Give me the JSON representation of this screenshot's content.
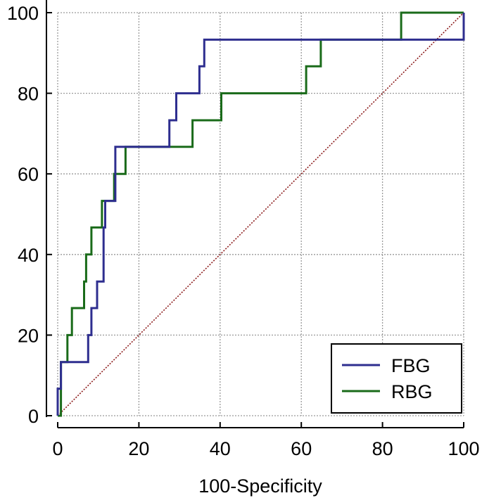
{
  "chart_data": {
    "type": "line",
    "xlabel": "100-Specificity",
    "ylabel": "",
    "xlim": [
      0,
      100
    ],
    "ylim": [
      0,
      100
    ],
    "xticks": [
      "0",
      "20",
      "40",
      "60",
      "80",
      "100"
    ],
    "yticks": [
      "0",
      "20",
      "40",
      "60",
      "80",
      "100"
    ],
    "grid": true,
    "legend_position": "bottom-right",
    "reference_line": {
      "x": [
        0,
        100
      ],
      "y": [
        0,
        100
      ],
      "color": "#8b1a1a",
      "style": "dotted"
    },
    "series": [
      {
        "name": "FBG",
        "color": "#2e2e8f",
        "x": [
          0,
          0,
          0.8,
          0.8,
          1.6,
          1.6,
          7.5,
          7.5,
          8.3,
          8.3,
          9.7,
          9.7,
          10.5,
          10.5,
          11.3,
          11.3,
          11.7,
          11.7,
          14.2,
          14.2,
          27.5,
          27.5,
          29.2,
          29.2,
          34.9,
          34.9,
          36.1,
          36.1,
          100,
          100
        ],
        "y": [
          0,
          6.7,
          6.7,
          13.3,
          13.3,
          13.3,
          13.3,
          20,
          20,
          26.7,
          26.7,
          33.3,
          33.3,
          33.3,
          33.3,
          46.7,
          46.7,
          53.3,
          53.3,
          66.7,
          66.7,
          73.3,
          73.3,
          80,
          80,
          86.7,
          86.7,
          93.3,
          93.3,
          100
        ]
      },
      {
        "name": "RBG",
        "color": "#1a6b1a",
        "x": [
          0,
          0.8,
          0.8,
          2.4,
          2.4,
          3.5,
          3.5,
          6.5,
          6.5,
          7.0,
          7.0,
          8.3,
          8.3,
          10.9,
          10.9,
          13.9,
          13.9,
          16.7,
          16.7,
          33.2,
          33.2,
          40.3,
          40.3,
          61.2,
          61.2,
          64.8,
          64.8,
          84.6,
          84.6,
          100
        ],
        "y": [
          0,
          0,
          13.3,
          13.3,
          20,
          20,
          26.7,
          26.7,
          33.3,
          33.3,
          40,
          40,
          46.7,
          46.7,
          53.3,
          53.3,
          60,
          60,
          66.7,
          66.7,
          73.3,
          73.3,
          80,
          80,
          86.7,
          86.7,
          93.3,
          93.3,
          100,
          100
        ]
      }
    ]
  }
}
